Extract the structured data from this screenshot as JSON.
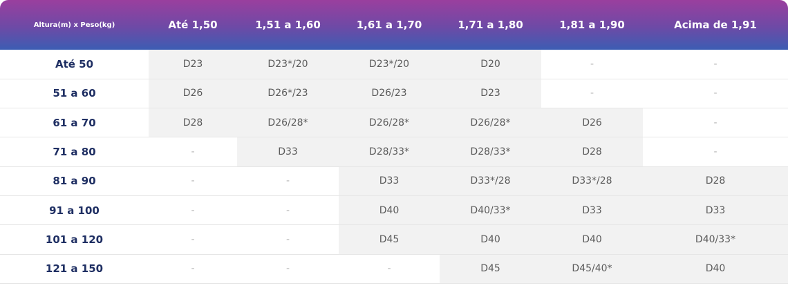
{
  "table": {
    "header": [
      "Altura(m) x Peso(kg)",
      "Até 1,50",
      "1,51 a 1,60",
      "1,61 a 1,70",
      "1,71 a 1,80",
      "1,81 a 1,90",
      "Acima de 1,91"
    ],
    "rows": [
      [
        "Até 50",
        "D23",
        "D23*/20",
        "D23*/20",
        "D20",
        "-",
        "-"
      ],
      [
        "51 a 60",
        "D26",
        "D26*/23",
        "D26/23",
        "D23",
        "-",
        "-"
      ],
      [
        "61 a 70",
        "D28",
        "D26/28*",
        "D26/28*",
        "D26/28*",
        "D26",
        "-"
      ],
      [
        "71 a 80",
        "-",
        "D33",
        "D28/33*",
        "D28/33*",
        "D28",
        "-"
      ],
      [
        "81 a 90",
        "-",
        "-",
        "D33",
        "D33*/28",
        "D33*/28",
        "D28"
      ],
      [
        "91 a 100",
        "-",
        "-",
        "D40",
        "D40/33*",
        "D33",
        "D33"
      ],
      [
        "101 a 120",
        "-",
        "-",
        "D45",
        "D40",
        "D40",
        "D40/33*"
      ],
      [
        "121 a 150",
        "-",
        "-",
        "-",
        "D45",
        "D45/40*",
        "D40"
      ]
    ]
  }
}
